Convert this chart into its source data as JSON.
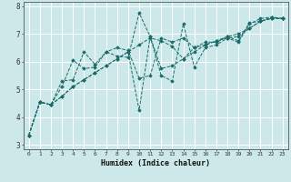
{
  "title": "",
  "xlabel": "Humidex (Indice chaleur)",
  "ylabel": "",
  "background_color": "#cce8e8",
  "grid_color": "#ffffff",
  "line_color": "#1a6b6b",
  "xlim": [
    -0.5,
    23.5
  ],
  "ylim": [
    2.85,
    8.15
  ],
  "yticks": [
    3,
    4,
    5,
    6,
    7,
    8
  ],
  "xticks": [
    0,
    1,
    2,
    3,
    4,
    5,
    6,
    7,
    8,
    9,
    10,
    11,
    12,
    13,
    14,
    15,
    16,
    17,
    18,
    19,
    20,
    21,
    22,
    23
  ],
  "series": [
    {
      "x": [
        0,
        1,
        2,
        3,
        4,
        5,
        6,
        7,
        8,
        9,
        10,
        11,
        12,
        13,
        14,
        15,
        16,
        17,
        18,
        19,
        20,
        21,
        22,
        23
      ],
      "y": [
        3.35,
        4.55,
        4.45,
        5.1,
        6.05,
        5.75,
        5.8,
        6.35,
        6.2,
        6.15,
        7.75,
        6.9,
        5.5,
        5.3,
        7.35,
        5.8,
        6.5,
        6.6,
        6.85,
        6.7,
        7.35,
        7.55,
        7.6,
        7.55
      ]
    },
    {
      "x": [
        0,
        1,
        2,
        3,
        4,
        5,
        6,
        7,
        8,
        9,
        10,
        11,
        12,
        13,
        14,
        15,
        16,
        17,
        18,
        19,
        20,
        21,
        22,
        23
      ],
      "y": [
        3.35,
        4.55,
        4.45,
        5.3,
        5.35,
        6.35,
        5.9,
        6.35,
        6.5,
        6.4,
        5.4,
        5.5,
        6.85,
        6.7,
        6.85,
        6.5,
        6.7,
        6.7,
        6.9,
        6.75,
        7.4,
        7.45,
        7.55,
        7.55
      ]
    },
    {
      "x": [
        0,
        1,
        2,
        3,
        4,
        5,
        6,
        7,
        8,
        9,
        10,
        11,
        12,
        13,
        14,
        15,
        16,
        17,
        18,
        19,
        20,
        21,
        22,
        23
      ],
      "y": [
        3.35,
        4.55,
        4.45,
        4.75,
        5.1,
        5.35,
        5.6,
        5.85,
        6.1,
        6.35,
        4.25,
        6.9,
        5.75,
        5.85,
        6.1,
        6.5,
        6.6,
        6.75,
        6.85,
        6.9,
        7.2,
        7.45,
        7.6,
        7.55
      ]
    },
    {
      "x": [
        0,
        1,
        2,
        3,
        4,
        5,
        6,
        7,
        8,
        9,
        10,
        11,
        12,
        13,
        14,
        15,
        16,
        17,
        18,
        19,
        20,
        21,
        22,
        23
      ],
      "y": [
        3.35,
        4.55,
        4.45,
        4.75,
        5.1,
        5.35,
        5.6,
        5.85,
        6.1,
        6.35,
        6.6,
        6.85,
        6.75,
        6.55,
        6.1,
        6.35,
        6.6,
        6.75,
        6.9,
        7.0,
        7.2,
        7.45,
        7.55,
        7.55
      ]
    }
  ]
}
